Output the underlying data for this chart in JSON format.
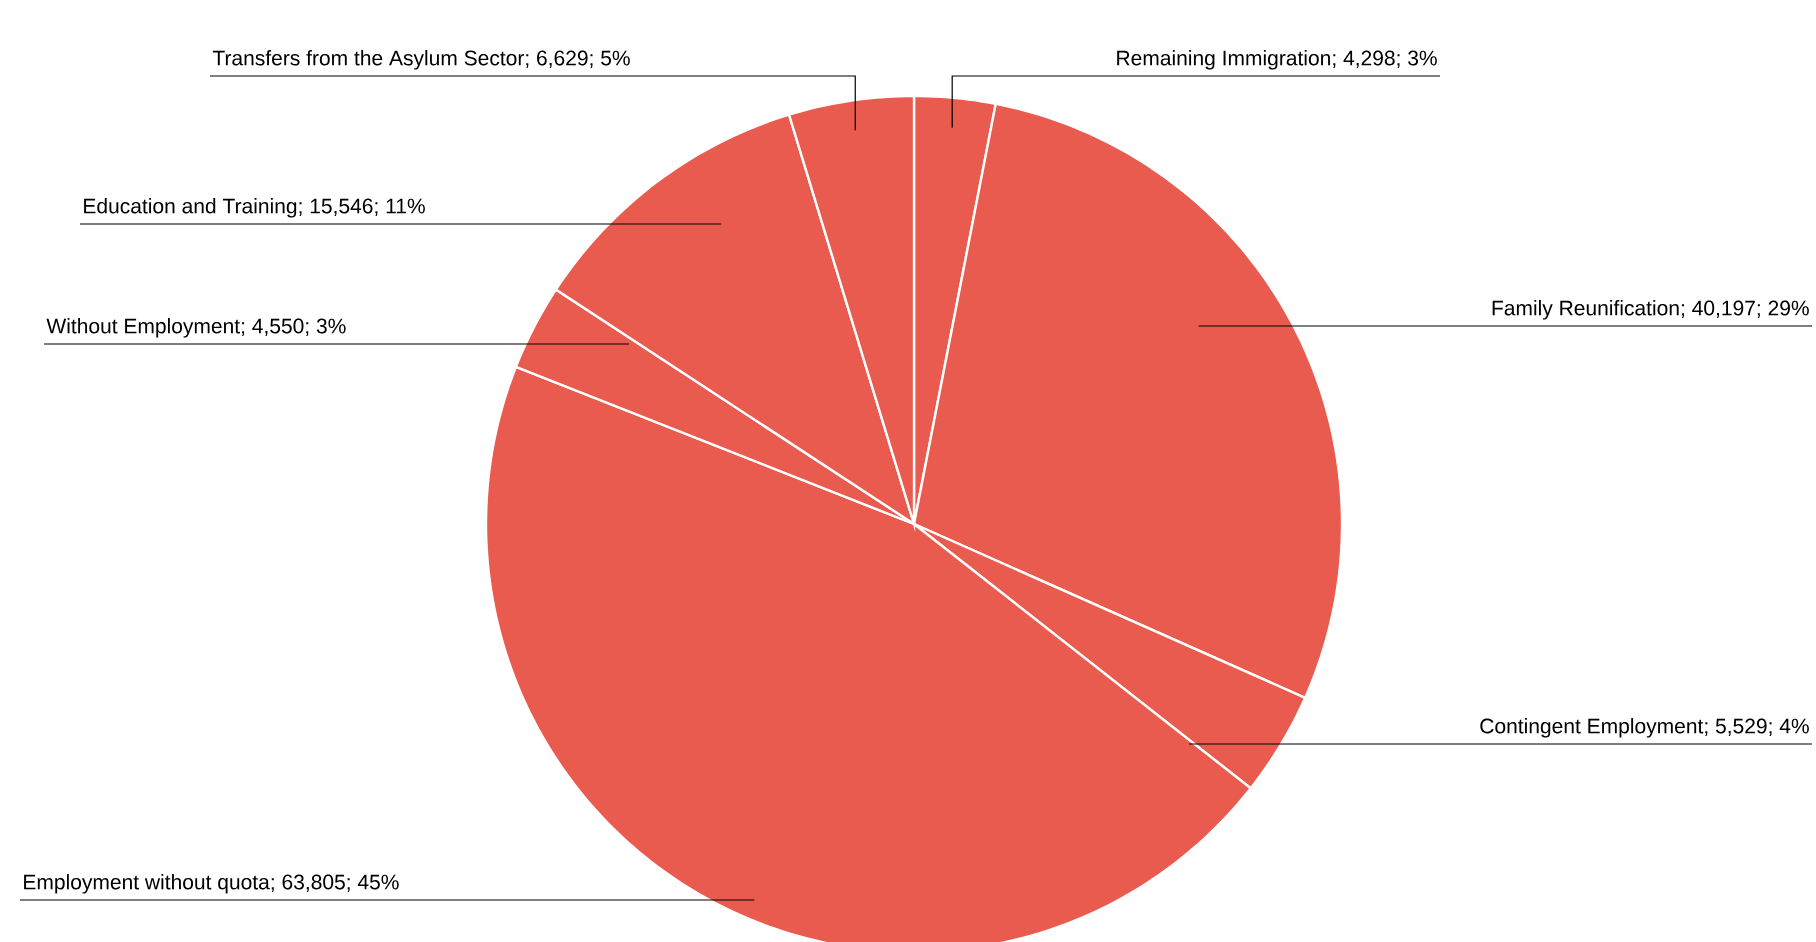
{
  "chart_data": {
    "type": "pie",
    "categories": [
      "Remaining Immigration",
      "Family Reunification",
      "Contingent Employment",
      "Employment without quota",
      "Without Employment",
      "Education and Training",
      "Transfers from the Asylum Sector"
    ],
    "values": [
      4298,
      40197,
      5529,
      63805,
      4550,
      15546,
      6629
    ],
    "value_labels": [
      "; 4,298; 3%",
      "; 40,197; 29%",
      "; 5,529; 4%",
      "; 63,805; 45%",
      "; 4,550; 3%",
      "; 15,546; 11%",
      "; 6,629; 5%"
    ],
    "colors": [
      "#e95b4f",
      "#e95b4f",
      "#e95b4f",
      "#e95b4f",
      "#e95b4f",
      "#e95b4f",
      "#e95b4f"
    ],
    "legend": false
  }
}
